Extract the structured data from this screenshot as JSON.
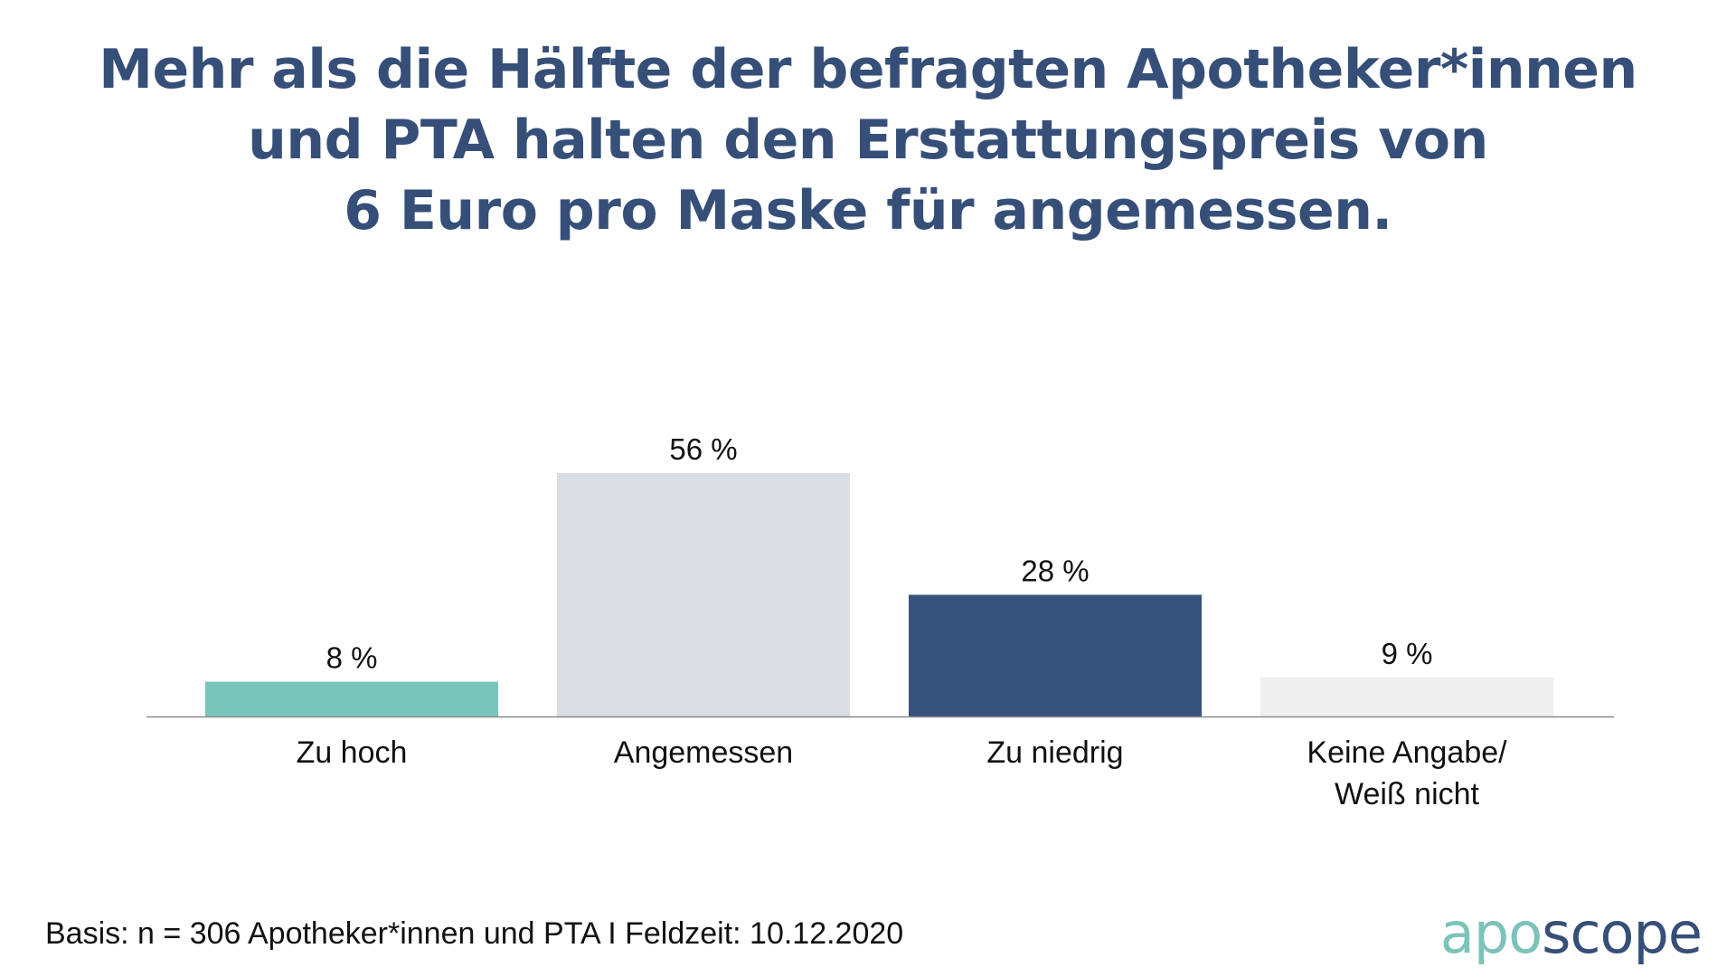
{
  "chart_data": {
    "type": "bar",
    "title_lines": [
      "Mehr als die Hälfte der befragten Apotheker*innen",
      "und PTA halten den Erstattungspreis von",
      "6 Euro pro Maske für angemessen."
    ],
    "categories": [
      [
        "Zu hoch"
      ],
      [
        "Angemessen"
      ],
      [
        "Zu niedrig"
      ],
      [
        "Keine Angabe/",
        "Weiß nicht"
      ]
    ],
    "values": [
      8,
      56,
      28,
      9
    ],
    "value_labels": [
      "8 %",
      "56 %",
      "28 %",
      "9 %"
    ],
    "colors": [
      "#79c4bb",
      "#d9dde4",
      "#37527a",
      "#efefef"
    ],
    "ylim": [
      0,
      56
    ],
    "xlabel": "",
    "ylabel": "",
    "grid": false,
    "legend": "none"
  },
  "footer": {
    "basis": "Basis: n = 306 Apotheker*innen und PTA I Feldzeit: 10.12.2020"
  },
  "logo": {
    "part1": "apo",
    "part2": "scope"
  }
}
